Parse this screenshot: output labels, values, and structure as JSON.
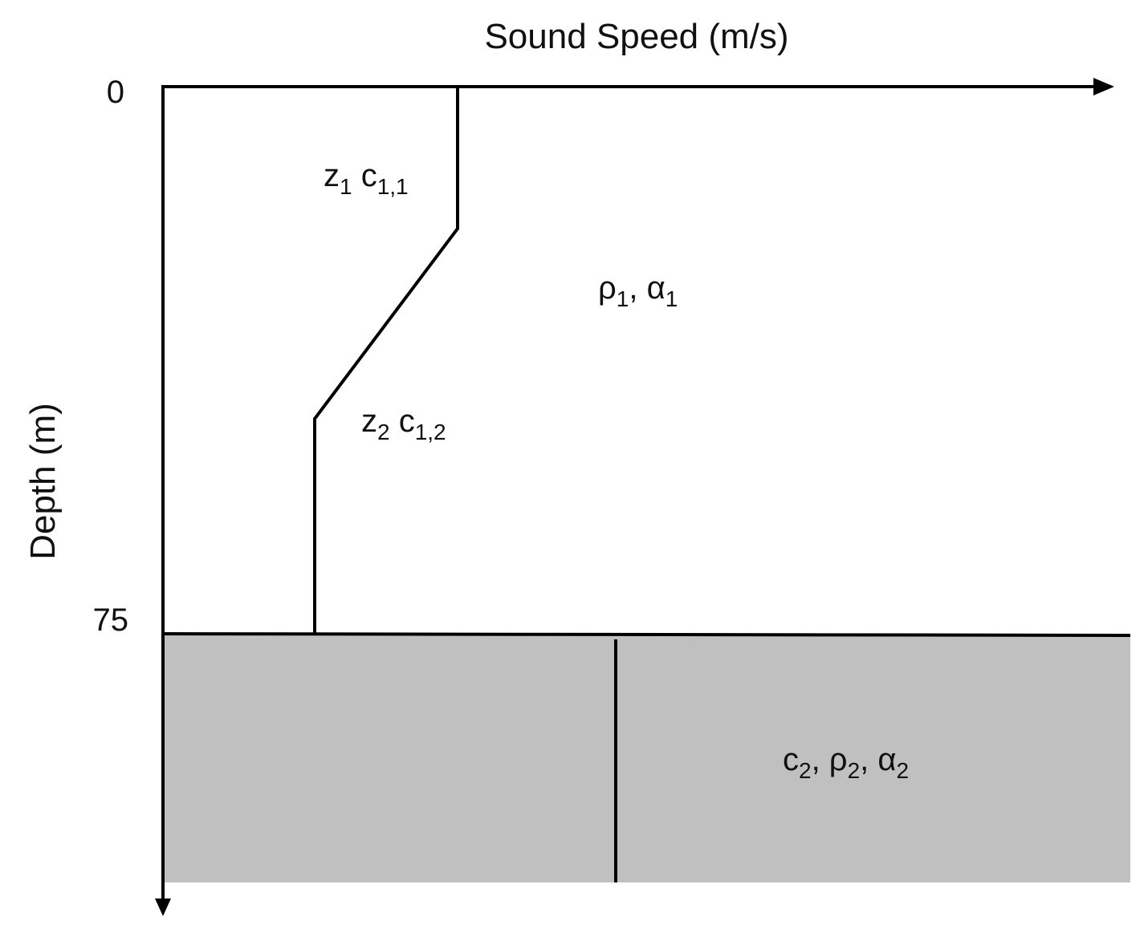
{
  "axes": {
    "x_label": "Sound Speed (m/s)",
    "y_label": "Depth (m)",
    "depth_ticks": [
      "0",
      "75"
    ]
  },
  "labels": [
    {
      "parts": [
        "z",
        "1",
        " c",
        "1,1"
      ]
    },
    {
      "parts": [
        "ρ",
        "1",
        ", α",
        "1"
      ]
    },
    {
      "parts": [
        "z",
        "2",
        " c",
        "1,2"
      ]
    },
    {
      "parts": [
        "c",
        "2",
        ", ρ",
        "2",
        ", α",
        "2"
      ]
    }
  ]
}
